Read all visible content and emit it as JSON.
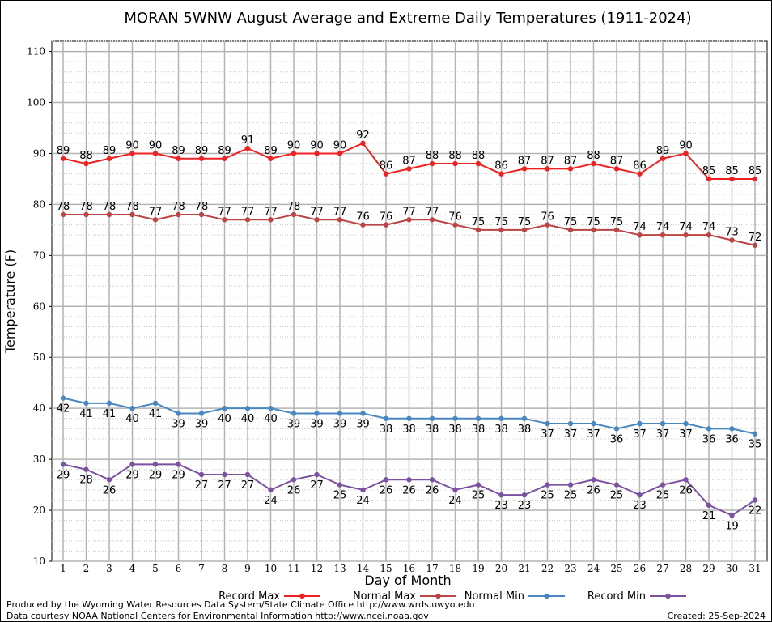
{
  "chart_data": {
    "type": "line",
    "title": "MORAN 5WNW August Average and Extreme Daily Temperatures (1911-2024)",
    "xlabel": "Day of Month",
    "ylabel": "Temperature (F)",
    "ylim": [
      10,
      112
    ],
    "yticks": [
      10,
      20,
      30,
      40,
      50,
      60,
      70,
      80,
      90,
      100,
      110
    ],
    "x": [
      1,
      2,
      3,
      4,
      5,
      6,
      7,
      8,
      9,
      10,
      11,
      12,
      13,
      14,
      15,
      16,
      17,
      18,
      19,
      20,
      21,
      22,
      23,
      24,
      25,
      26,
      27,
      28,
      29,
      30,
      31
    ],
    "grid": true,
    "legend_position": "bottom",
    "series": [
      {
        "name": "Record Max",
        "color": "#ee2222",
        "label_position": "above",
        "values": [
          89,
          88,
          89,
          90,
          90,
          89,
          89,
          89,
          91,
          89,
          90,
          90,
          90,
          92,
          86,
          87,
          88,
          88,
          88,
          86,
          87,
          87,
          87,
          88,
          87,
          86,
          89,
          90,
          85,
          85,
          85
        ]
      },
      {
        "name": "Normal Max",
        "color": "#bb4444",
        "label_position": "above",
        "values": [
          78,
          78,
          78,
          78,
          77,
          78,
          78,
          77,
          77,
          77,
          78,
          77,
          77,
          76,
          76,
          77,
          77,
          76,
          75,
          75,
          75,
          76,
          75,
          75,
          75,
          74,
          74,
          74,
          74,
          73,
          72
        ]
      },
      {
        "name": "Normal Min",
        "color": "#4a86c0",
        "label_position": "below",
        "values": [
          42,
          41,
          41,
          40,
          41,
          39,
          39,
          40,
          40,
          40,
          39,
          39,
          39,
          39,
          38,
          38,
          38,
          38,
          38,
          38,
          38,
          37,
          37,
          37,
          36,
          37,
          37,
          37,
          36,
          36,
          35
        ]
      },
      {
        "name": "Record Min",
        "color": "#7a52a0",
        "label_position": "below",
        "values": [
          29,
          28,
          26,
          29,
          29,
          29,
          27,
          27,
          27,
          24,
          26,
          27,
          25,
          24,
          26,
          26,
          26,
          24,
          25,
          23,
          23,
          25,
          25,
          26,
          25,
          23,
          25,
          26,
          21,
          19,
          22
        ]
      }
    ]
  },
  "footer": {
    "produced_by": "Produced by the Wyoming Water Resources Data System/State Climate Office http://www.wrds.uwyo.edu",
    "courtesy": "Data courtesy NOAA National Centers for Environmental Information http://www.ncei.noaa.gov",
    "created": "Created:  25-Sep-2024"
  }
}
